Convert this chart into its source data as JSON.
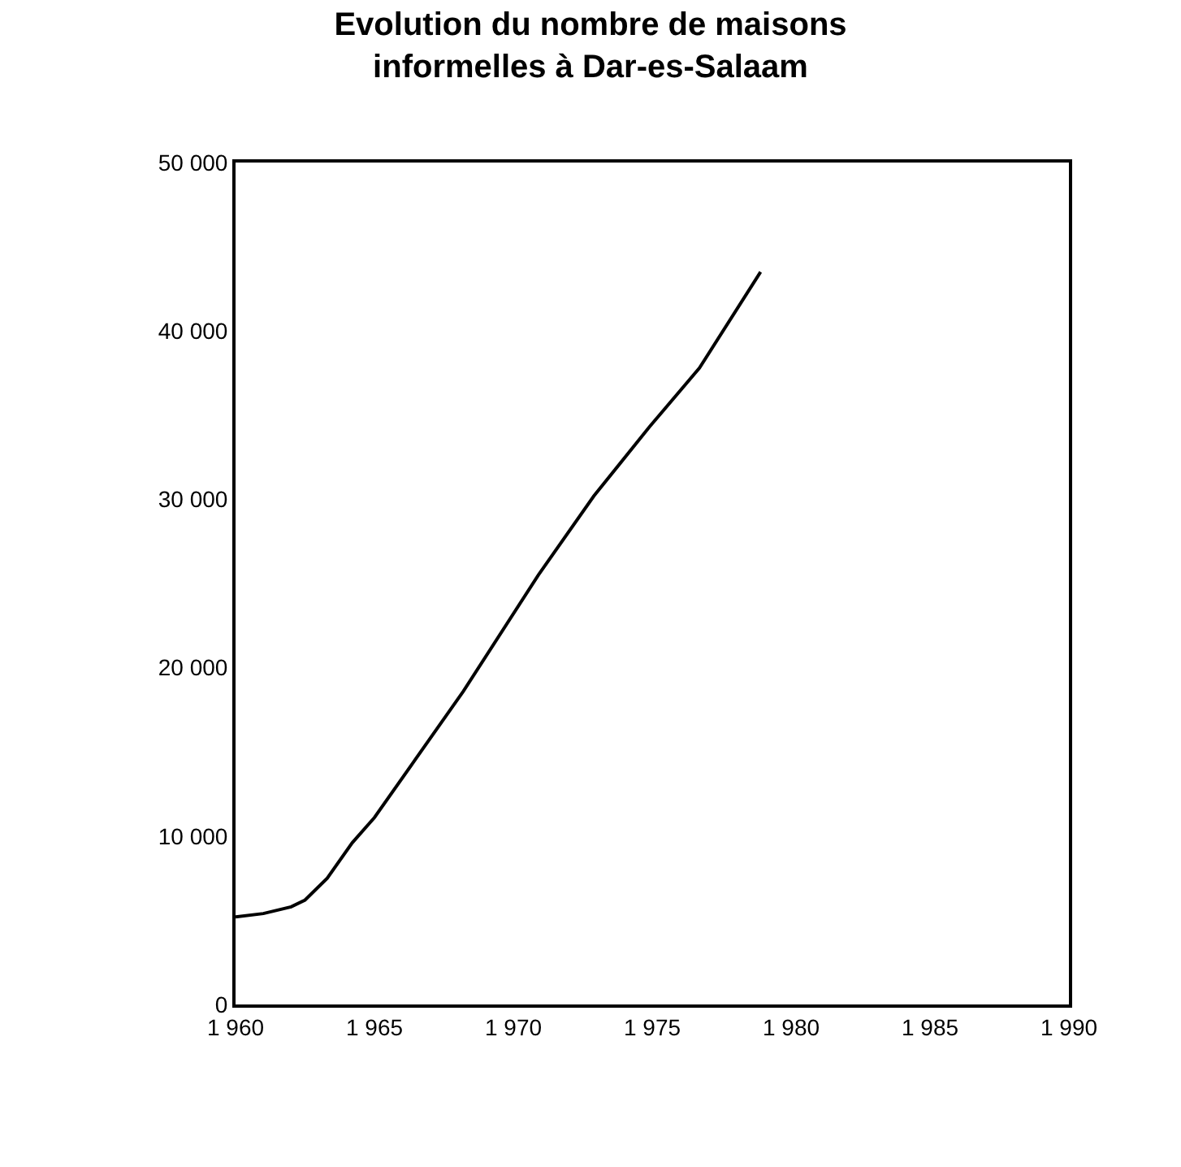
{
  "chart_data": {
    "type": "line",
    "title": "Evolution du nombre de maisons\ninformelles à Dar-es-Salaam",
    "x": [
      1960,
      1961,
      1962,
      1962.5,
      1963.3,
      1964.2,
      1965,
      1968.2,
      1970.9,
      1972.9,
      1974.9,
      1976.7,
      1978.9
    ],
    "series": [
      {
        "color": "#000000",
        "values": [
          5200,
          5400,
          5800,
          6200,
          7500,
          9600,
          11100,
          18600,
          25500,
          30200,
          34300,
          37800,
          43500
        ]
      }
    ],
    "xlim": [
      1960,
      1990
    ],
    "xticks": [
      {
        "value": 1960,
        "label": "1 960"
      },
      {
        "value": 1965,
        "label": "1 965"
      },
      {
        "value": 1970,
        "label": "1 970"
      },
      {
        "value": 1975,
        "label": "1 975"
      },
      {
        "value": 1980,
        "label": "1 980"
      },
      {
        "value": 1985,
        "label": "1 985"
      },
      {
        "value": 1990,
        "label": "1 990"
      }
    ],
    "ylim": [
      0,
      50000
    ],
    "yticks": [
      0,
      {
        "value": 10000,
        "label": "10 000"
      },
      {
        "value": 20000,
        "label": "20 000"
      },
      {
        "value": 30000,
        "label": "30 000"
      },
      {
        "value": 40000,
        "label": "40 000"
      },
      {
        "value": 50000,
        "label": "50 000"
      }
    ],
    "marker": "none",
    "line_style": "solid"
  }
}
